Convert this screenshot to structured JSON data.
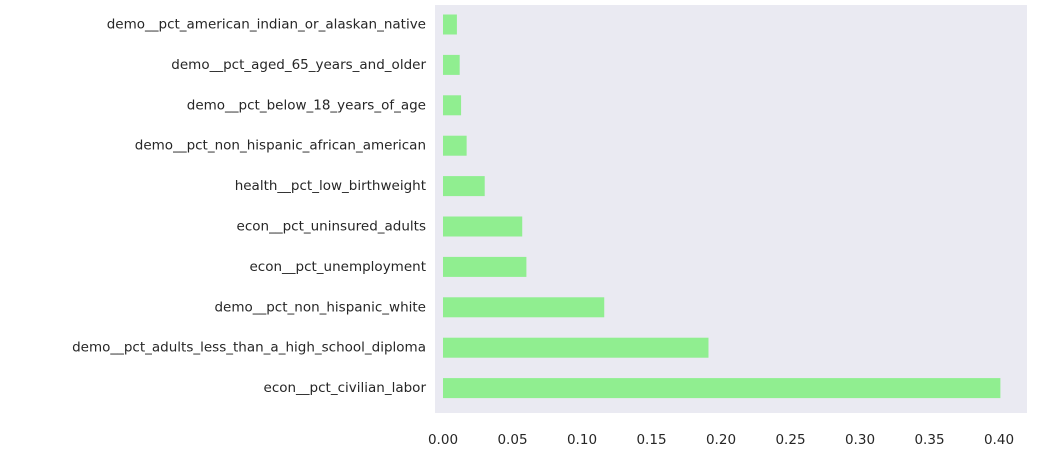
{
  "chart_data": {
    "type": "bar",
    "orientation": "horizontal",
    "categories": [
      "demo__pct_american_indian_or_alaskan_native",
      "demo__pct_aged_65_years_and_older",
      "demo__pct_below_18_years_of_age",
      "demo__pct_non_hispanic_african_american",
      "health__pct_low_birthweight",
      "econ__pct_uninsured_adults",
      "econ__pct_unemployment",
      "demo__pct_non_hispanic_white",
      "demo__pct_adults_less_than_a_high_school_diploma",
      "econ__pct_civilian_labor"
    ],
    "values": [
      0.01,
      0.012,
      0.013,
      0.017,
      0.03,
      0.057,
      0.06,
      0.116,
      0.191,
      0.401
    ],
    "x_ticks": [
      "0.00",
      "0.05",
      "0.10",
      "0.15",
      "0.20",
      "0.25",
      "0.30",
      "0.35",
      "0.40"
    ],
    "xlim": [
      0,
      0.42
    ],
    "title": "",
    "xlabel": "",
    "ylabel": "",
    "grid": false,
    "colors": {
      "bar": "#90ee90",
      "plot_background": "#eaeaf2",
      "text": "#262626"
    }
  }
}
